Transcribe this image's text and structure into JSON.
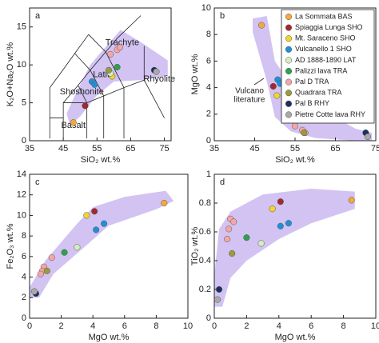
{
  "chart_data": [
    {
      "type": "scatter",
      "panel": "a",
      "xlabel": "SiO₂ wt.%",
      "ylabel": "K₂O+Na₂O wt.%",
      "xlim": [
        35,
        77
      ],
      "ylim": [
        0,
        17.5
      ],
      "xticks": [
        35,
        45,
        55,
        65,
        75
      ],
      "yticks": [
        0,
        5,
        10,
        15
      ],
      "fields": [
        "Trachyte",
        "Latite",
        "Shoshonite",
        "Rhyolite",
        "Basalt"
      ],
      "series": [
        {
          "color": "#f4a93a",
          "x": [
            48
          ],
          "y": [
            2.4
          ]
        },
        {
          "color": "#a3282e",
          "x": [
            51.5
          ],
          "y": [
            4.6
          ]
        },
        {
          "color": "#f3d52a",
          "x": [
            59.5
          ],
          "y": [
            8.5
          ]
        },
        {
          "color": "#1f90d8",
          "x": [
            53.5,
            54.3
          ],
          "y": [
            7.8,
            7.4
          ]
        },
        {
          "color": "#d6ecc2",
          "x": [
            59
          ],
          "y": [
            8.9
          ]
        },
        {
          "color": "#2ba24c",
          "x": [
            61
          ],
          "y": [
            9.7
          ]
        },
        {
          "color": "#f4a6a6",
          "x": [
            59,
            61,
            61.8
          ],
          "y": [
            11.4,
            12,
            12.3
          ]
        },
        {
          "color": "#9c9a3c",
          "x": [
            58.5
          ],
          "y": [
            9.3
          ]
        },
        {
          "color": "#1c2f5e",
          "x": [
            72
          ],
          "y": [
            9.3
          ]
        },
        {
          "color": "#a9a9a9",
          "x": [
            72.6
          ],
          "y": [
            9.1
          ]
        }
      ]
    },
    {
      "type": "scatter",
      "panel": "b",
      "xlabel": "SiO₂ wt.%",
      "ylabel": "MgO wt.%",
      "xlim": [
        35,
        75
      ],
      "ylim": [
        0,
        10
      ],
      "xticks": [
        35,
        45,
        55,
        65,
        75
      ],
      "yticks": [
        0,
        2,
        4,
        6,
        8,
        10
      ],
      "annotation": [
        "Vulcano",
        "literature"
      ],
      "series": [
        {
          "name": "La Sommata BAS",
          "color": "#f4a93a",
          "x": [
            46.7
          ],
          "y": [
            8.7
          ]
        },
        {
          "name": "Spiaggia Lunga SHO",
          "color": "#a3282e",
          "x": [
            49.6
          ],
          "y": [
            4.1
          ]
        },
        {
          "name": "Mt. Saraceno SHO",
          "color": "#f3d52a",
          "x": [
            50.5
          ],
          "y": [
            3.4
          ]
        },
        {
          "name": "Vulcanello 1 SHO",
          "color": "#1f90d8",
          "x": [
            50.7,
            51.3
          ],
          "y": [
            4.6,
            4.3
          ]
        },
        {
          "name": "AD 1888-1890 LAT",
          "color": "#d6ecc2",
          "x": [
            55.5
          ],
          "y": [
            2.7
          ]
        },
        {
          "name": "Palizzi lava TRA",
          "color": "#2ba24c",
          "x": [
            57
          ],
          "y": [
            1.6
          ]
        },
        {
          "name": "Pal D TRA",
          "color": "#f4a6a6",
          "x": [
            55,
            56.8,
            57.5
          ],
          "y": [
            1.1,
            0.8,
            0.6
          ]
        },
        {
          "name": "Quadrara TRA",
          "color": "#9c9a3c",
          "x": [
            57.2
          ],
          "y": [
            0.6
          ]
        },
        {
          "name": "Pal B RHY",
          "color": "#1c2f5e",
          "x": [
            72.5
          ],
          "y": [
            0.6
          ]
        },
        {
          "name": "Pietre Cotte lava RHY",
          "color": "#a9a9a9",
          "x": [
            73
          ],
          "y": [
            0.3
          ]
        }
      ]
    },
    {
      "type": "scatter",
      "panel": "c",
      "xlabel": "MgO wt.%",
      "ylabel": "Fe₂O₃ wt.%",
      "xlim": [
        0,
        10
      ],
      "ylim": [
        0,
        14
      ],
      "xticks": [
        0,
        2,
        4,
        6,
        8,
        10
      ],
      "yticks": [
        0,
        2,
        4,
        6,
        8,
        10,
        12,
        14
      ],
      "series": [
        {
          "color": "#f4a93a",
          "x": [
            8.5
          ],
          "y": [
            11.2
          ]
        },
        {
          "color": "#a3282e",
          "x": [
            4.1
          ],
          "y": [
            10.4
          ]
        },
        {
          "color": "#f3d52a",
          "x": [
            3.6
          ],
          "y": [
            10
          ]
        },
        {
          "color": "#1f90d8",
          "x": [
            4.2,
            4.7
          ],
          "y": [
            8.6,
            9.2
          ]
        },
        {
          "color": "#d6ecc2",
          "x": [
            3
          ],
          "y": [
            6.9
          ]
        },
        {
          "color": "#2ba24c",
          "x": [
            2.2
          ],
          "y": [
            6.4
          ]
        },
        {
          "color": "#f4a6a6",
          "x": [
            1.4,
            0.9,
            0.8,
            0.7
          ],
          "y": [
            5.9,
            5,
            4.6,
            4.3
          ]
        },
        {
          "color": "#9c9a3c",
          "x": [
            1.1
          ],
          "y": [
            4.6
          ]
        },
        {
          "color": "#1c2f5e",
          "x": [
            0.4
          ],
          "y": [
            2.4
          ]
        },
        {
          "color": "#a9a9a9",
          "x": [
            0.3
          ],
          "y": [
            2.6
          ]
        }
      ]
    },
    {
      "type": "scatter",
      "panel": "d",
      "xlabel": "MgO wt.%",
      "ylabel": "TiO₂ wt.%",
      "xlim": [
        0,
        10
      ],
      "ylim": [
        0,
        1
      ],
      "xticks": [
        0,
        2,
        4,
        6,
        8,
        10
      ],
      "yticks": [
        0,
        0.2,
        0.4,
        0.6,
        0.8,
        1
      ],
      "series": [
        {
          "color": "#f4a93a",
          "x": [
            8.5
          ],
          "y": [
            0.82
          ]
        },
        {
          "color": "#a3282e",
          "x": [
            4.1
          ],
          "y": [
            0.81
          ]
        },
        {
          "color": "#f3d52a",
          "x": [
            3.6
          ],
          "y": [
            0.76
          ]
        },
        {
          "color": "#1f90d8",
          "x": [
            4.1,
            4.6
          ],
          "y": [
            0.64,
            0.66
          ]
        },
        {
          "color": "#d6ecc2",
          "x": [
            2.9
          ],
          "y": [
            0.52
          ]
        },
        {
          "color": "#2ba24c",
          "x": [
            2
          ],
          "y": [
            0.56
          ]
        },
        {
          "color": "#f4a6a6",
          "x": [
            1,
            1.2,
            0.9,
            0.8
          ],
          "y": [
            0.69,
            0.67,
            0.62,
            0.55
          ]
        },
        {
          "color": "#9c9a3c",
          "x": [
            1.1
          ],
          "y": [
            0.45
          ]
        },
        {
          "color": "#1c2f5e",
          "x": [
            0.3
          ],
          "y": [
            0.2
          ]
        },
        {
          "color": "#a9a9a9",
          "x": [
            0.2
          ],
          "y": [
            0.13
          ]
        }
      ]
    }
  ]
}
